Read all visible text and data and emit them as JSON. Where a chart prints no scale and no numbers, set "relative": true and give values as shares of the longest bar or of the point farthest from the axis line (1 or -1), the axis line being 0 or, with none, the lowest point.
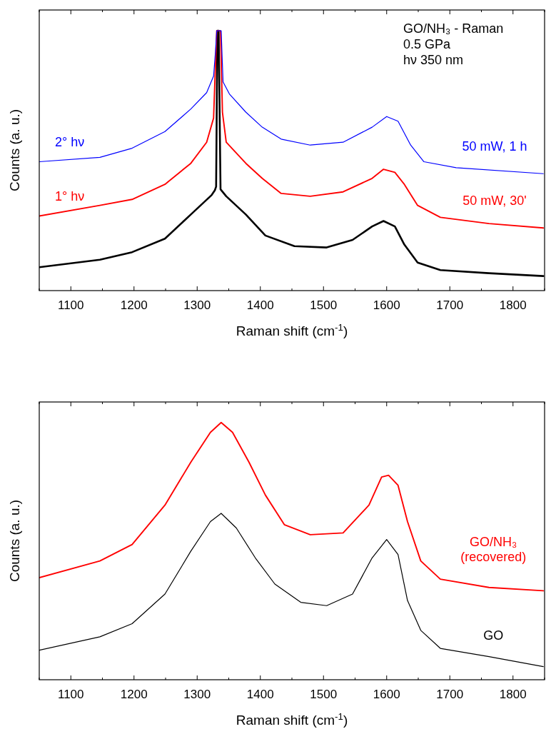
{
  "chart_data": [
    {
      "type": "line",
      "relative": true,
      "xlabel": "Raman shift (cm$^{-1}$)",
      "ylabel": "Counts (a. u.)",
      "xlim": [
        1050,
        1850
      ],
      "xticks": [
        1100,
        1200,
        1300,
        1400,
        1500,
        1600,
        1700,
        1800
      ],
      "grid": false,
      "line_style": "solid",
      "annotations": [
        "GO/NH₃ - Raman",
        "0.5 GPa",
        "hν 350 nm",
        "50 mW, 1 h",
        "50 mW, 30'"
      ],
      "series": [
        {
          "color": "#000000",
          "x": [
            1050,
            1146,
            1197,
            1249,
            1290,
            1323,
            1328,
            1330,
            1332,
            1334,
            1337,
            1346,
            1377,
            1408,
            1454,
            1505,
            1546,
            1577,
            1595,
            1613,
            1628,
            1649,
            1685,
            1762,
            1848
          ],
          "values": [
            0.09,
            0.119,
            0.148,
            0.2,
            0.293,
            0.368,
            0.386,
            0.4,
            1,
            1,
            0.39,
            0.363,
            0.293,
            0.212,
            0.171,
            0.166,
            0.195,
            0.247,
            0.268,
            0.247,
            0.177,
            0.108,
            0.079,
            0.067,
            0.056
          ]
        },
        {
          "name": "1° hν",
          "color": "#ff0000",
          "x": [
            1050,
            1146,
            1197,
            1249,
            1290,
            1315,
            1326,
            1328,
            1331,
            1337,
            1340,
            1346,
            1377,
            1403,
            1433,
            1479,
            1531,
            1577,
            1595,
            1613,
            1628,
            1649,
            1685,
            1762,
            1848
          ],
          "values": [
            0.287,
            0.328,
            0.351,
            0.409,
            0.49,
            0.571,
            0.664,
            0.803,
            1,
            1,
            0.687,
            0.571,
            0.49,
            0.432,
            0.374,
            0.363,
            0.38,
            0.432,
            0.467,
            0.455,
            0.409,
            0.328,
            0.282,
            0.258,
            0.241
          ]
        },
        {
          "name": "2° hν",
          "color": "#0000ff",
          "x": [
            1050,
            1146,
            1197,
            1249,
            1290,
            1315,
            1326,
            1329,
            1331,
            1338,
            1341,
            1351,
            1377,
            1403,
            1433,
            1479,
            1531,
            1577,
            1600,
            1618,
            1638,
            1659,
            1710,
            1848
          ],
          "values": [
            0.496,
            0.513,
            0.548,
            0.612,
            0.699,
            0.762,
            0.826,
            0.919,
            1,
            1,
            0.803,
            0.757,
            0.687,
            0.629,
            0.583,
            0.56,
            0.571,
            0.629,
            0.67,
            0.652,
            0.56,
            0.496,
            0.473,
            0.45
          ]
        }
      ]
    },
    {
      "type": "line",
      "relative": true,
      "xlabel": "Raman shift (cm$^{-1}$)",
      "ylabel": "Counts (a. u.)",
      "xlim": [
        1050,
        1850
      ],
      "xticks": [
        1100,
        1200,
        1300,
        1400,
        1500,
        1600,
        1700,
        1800
      ],
      "grid": false,
      "line_style": "solid",
      "series": [
        {
          "name": "GO/NH₃ (recovered)",
          "color": "#ff0000",
          "x": [
            1050,
            1146,
            1197,
            1249,
            1290,
            1321,
            1338,
            1356,
            1382,
            1408,
            1438,
            1479,
            1531,
            1572,
            1592,
            1603,
            1618,
            1633,
            1654,
            1685,
            1762,
            1848
          ],
          "values": [
            0.397,
            0.462,
            0.526,
            0.679,
            0.846,
            0.962,
            1,
            0.962,
            0.846,
            0.718,
            0.603,
            0.564,
            0.571,
            0.679,
            0.788,
            0.795,
            0.756,
            0.615,
            0.462,
            0.391,
            0.359,
            0.346
          ]
        },
        {
          "name": "GO",
          "color": "#000000",
          "x": [
            1050,
            1146,
            1197,
            1249,
            1290,
            1321,
            1338,
            1362,
            1392,
            1423,
            1464,
            1505,
            1546,
            1577,
            1600,
            1618,
            1633,
            1654,
            1685,
            1762,
            1848
          ],
          "values": [
            0.115,
            0.167,
            0.218,
            0.333,
            0.5,
            0.615,
            0.647,
            0.59,
            0.474,
            0.372,
            0.301,
            0.288,
            0.333,
            0.474,
            0.545,
            0.487,
            0.308,
            0.192,
            0.122,
            0.09,
            0.051
          ]
        }
      ]
    }
  ]
}
